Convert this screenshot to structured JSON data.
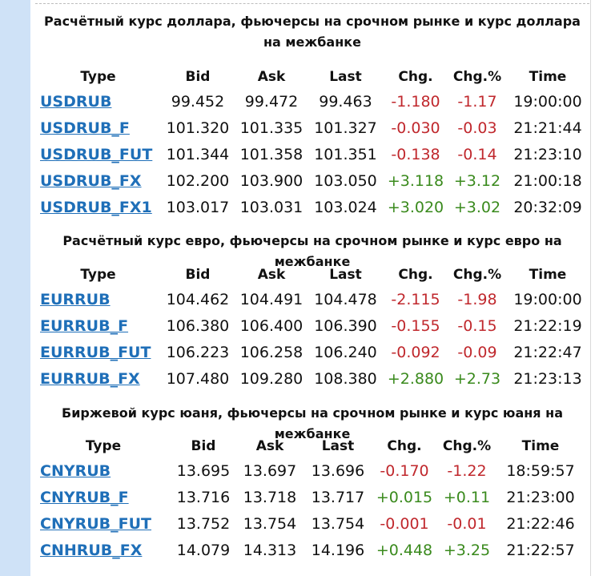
{
  "sections": [
    {
      "title": "Расчётный курс доллара, фьючерсы на срочном рынке и курс доллара на межбанке",
      "headers": [
        "Type",
        "Bid",
        "Ask",
        "Last",
        "Chg.",
        "Chg.%",
        "Time"
      ],
      "rows": [
        {
          "type": "USDRUB",
          "bid": "99.452",
          "ask": "99.472",
          "last": "99.463",
          "chg": "-1.180",
          "chgp": "-1.17",
          "time": "19:00:00",
          "dir": "neg"
        },
        {
          "type": "USDRUB_F",
          "bid": "101.320",
          "ask": "101.335",
          "last": "101.327",
          "chg": "-0.030",
          "chgp": "-0.03",
          "time": "21:21:44",
          "dir": "neg"
        },
        {
          "type": "USDRUB_FUT",
          "bid": "101.344",
          "ask": "101.358",
          "last": "101.351",
          "chg": "-0.138",
          "chgp": "-0.14",
          "time": "21:23:10",
          "dir": "neg"
        },
        {
          "type": "USDRUB_FX",
          "bid": "102.200",
          "ask": "103.900",
          "last": "103.050",
          "chg": "+3.118",
          "chgp": "+3.12",
          "time": "21:00:18",
          "dir": "pos"
        },
        {
          "type": "USDRUB_FX1",
          "bid": "103.017",
          "ask": "103.031",
          "last": "103.024",
          "chg": "+3.020",
          "chgp": "+3.02",
          "time": "20:32:09",
          "dir": "pos"
        }
      ]
    },
    {
      "title": "Расчётный курс евро, фьючерсы на срочном рынке и курс евро на межбанке",
      "headers": [
        "Type",
        "Bid",
        "Ask",
        "Last",
        "Chg.",
        "Chg.%",
        "Time"
      ],
      "rows": [
        {
          "type": "EURRUB",
          "bid": "104.462",
          "ask": "104.491",
          "last": "104.478",
          "chg": "-2.115",
          "chgp": "-1.98",
          "time": "19:00:00",
          "dir": "neg"
        },
        {
          "type": "EURRUB_F",
          "bid": "106.380",
          "ask": "106.400",
          "last": "106.390",
          "chg": "-0.155",
          "chgp": "-0.15",
          "time": "21:22:19",
          "dir": "neg"
        },
        {
          "type": "EURRUB_FUT",
          "bid": "106.223",
          "ask": "106.258",
          "last": "106.240",
          "chg": "-0.092",
          "chgp": "-0.09",
          "time": "21:22:47",
          "dir": "neg"
        },
        {
          "type": "EURRUB_FX",
          "bid": "107.480",
          "ask": "109.280",
          "last": "108.380",
          "chg": "+2.880",
          "chgp": "+2.73",
          "time": "21:23:13",
          "dir": "pos"
        }
      ]
    },
    {
      "title": "Биржевой курс юаня, фьючерсы на срочном рынке и курс юаня на межбанке",
      "headers": [
        "Type",
        "Bid",
        "Ask",
        "Last",
        "Chg.",
        "Chg.%",
        "Time"
      ],
      "rows": [
        {
          "type": "CNYRUB",
          "bid": "13.695",
          "ask": "13.697",
          "last": "13.696",
          "chg": "-0.170",
          "chgp": "-1.22",
          "time": "18:59:57",
          "dir": "neg"
        },
        {
          "type": "CNYRUB_F",
          "bid": "13.716",
          "ask": "13.718",
          "last": "13.717",
          "chg": "+0.015",
          "chgp": "+0.11",
          "time": "21:23:00",
          "dir": "pos"
        },
        {
          "type": "CNYRUB_FUT",
          "bid": "13.752",
          "ask": "13.754",
          "last": "13.754",
          "chg": "-0.001",
          "chgp": "-0.01",
          "time": "21:22:46",
          "dir": "neg"
        },
        {
          "type": "CNHRUB_FX",
          "bid": "14.079",
          "ask": "14.313",
          "last": "14.196",
          "chg": "+0.448",
          "chgp": "+3.25",
          "time": "21:22:57",
          "dir": "pos"
        }
      ]
    }
  ],
  "colors": {
    "negative": "#c0282d",
    "positive": "#3a8a1d",
    "link": "#1f6fb8",
    "sidebar": "#cfe2f7"
  }
}
